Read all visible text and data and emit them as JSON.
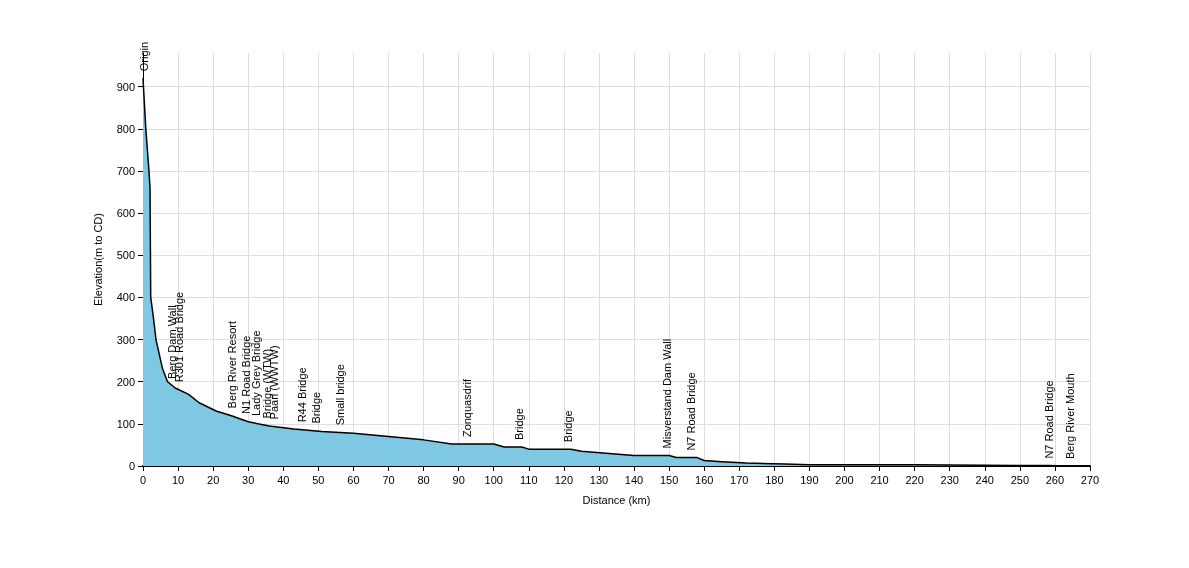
{
  "chart_data": {
    "type": "area",
    "xlabel": "Distance (km)",
    "ylabel": "Elevation(m to CD)",
    "x": [
      0,
      0.4,
      0.8,
      1.7,
      2,
      2.2,
      3,
      3.7,
      5.6,
      7,
      9.2,
      13,
      16,
      21,
      25,
      30,
      36,
      43,
      51,
      60,
      70,
      80,
      88,
      100,
      103,
      108,
      110,
      122,
      125,
      132,
      140,
      150,
      152,
      158,
      160,
      165,
      172,
      183,
      190,
      220,
      258,
      264
    ],
    "series": [
      {
        "color": "#7ec8e3",
        "values": [
          920,
          860,
          800,
          700,
          660,
          400,
          350,
          300,
          230,
          200,
          185,
          170,
          150,
          130,
          120,
          105,
          95,
          88,
          82,
          78,
          70,
          62,
          52,
          52,
          45,
          45,
          40,
          40,
          35,
          30,
          25,
          25,
          20,
          20,
          13,
          10,
          7,
          5,
          3,
          3,
          1,
          0
        ]
      }
    ],
    "xlim": [
      0,
      270
    ],
    "xticks": [
      0,
      10,
      20,
      30,
      40,
      50,
      60,
      70,
      80,
      90,
      100,
      110,
      120,
      130,
      140,
      150,
      160,
      170,
      180,
      190,
      200,
      210,
      220,
      230,
      240,
      250,
      260,
      270
    ],
    "ylim": [
      0,
      980
    ],
    "yticks": [
      0,
      100,
      200,
      300,
      400,
      500,
      600,
      700,
      800,
      900
    ],
    "grid": true,
    "annotations": [
      {
        "text": "Origin",
        "x": 0,
        "y": 920
      },
      {
        "text": "Berg Dam Wall",
        "x": 8,
        "y": 190
      },
      {
        "text": "R301 Road Bridge",
        "x": 10,
        "y": 182
      },
      {
        "text": "Berg River Resort",
        "x": 25,
        "y": 120
      },
      {
        "text": "N1 Road Bridge",
        "x": 29,
        "y": 107
      },
      {
        "text": "Lady Grey Bridge",
        "x": 32,
        "y": 102
      },
      {
        "text": "Bridge (WTW)",
        "x": 35,
        "y": 96
      },
      {
        "text": "Paarl (WWTW)",
        "x": 37,
        "y": 94
      },
      {
        "text": "R44 Bridge",
        "x": 45,
        "y": 87
      },
      {
        "text": "Bridge",
        "x": 49,
        "y": 84
      },
      {
        "text": "Small bridge",
        "x": 56,
        "y": 80
      },
      {
        "text": "Zonquasdrif",
        "x": 92,
        "y": 52
      },
      {
        "text": "Bridge",
        "x": 107,
        "y": 45
      },
      {
        "text": "Bridge",
        "x": 121,
        "y": 40
      },
      {
        "text": "Misverstand Dam Wall",
        "x": 149,
        "y": 25
      },
      {
        "text": "N7 Road Bridge",
        "x": 156,
        "y": 20
      },
      {
        "text": "N7 Road Bridge",
        "x": 258,
        "y": 1
      },
      {
        "text": "Berg River Mouth",
        "x": 264,
        "y": 0
      }
    ]
  }
}
